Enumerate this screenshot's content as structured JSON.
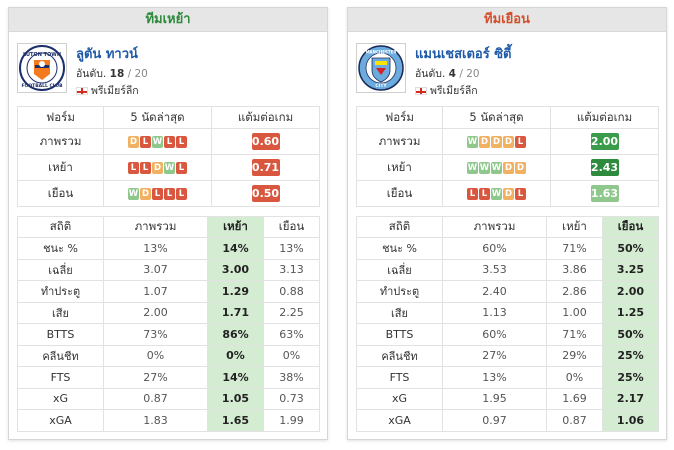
{
  "home": {
    "heading": "ทีมเหย้า",
    "team_name": "ลูตัน ทาวน์",
    "rank_label": "อันดับ.",
    "rank": "18",
    "rank_of": "/ 20",
    "league": "พรีเมียร์ลีก",
    "logo": "luton-town-crest",
    "form_headers": [
      "ฟอร์ม",
      "5 นัดล่าสุด",
      "แต้มต่อเกม"
    ],
    "form_rows": [
      {
        "label": "ภาพรวม",
        "results": [
          "D",
          "L",
          "W",
          "L",
          "L"
        ],
        "ppg": "0.60",
        "ppg_color": "#d9573f"
      },
      {
        "label": "เหย้า",
        "results": [
          "L",
          "L",
          "D",
          "W",
          "L"
        ],
        "ppg": "0.71",
        "ppg_color": "#d9573f"
      },
      {
        "label": "เยือน",
        "results": [
          "W",
          "D",
          "L",
          "L",
          "L"
        ],
        "ppg": "0.50",
        "ppg_color": "#d9573f"
      }
    ],
    "stats_headers": [
      "สถิติ",
      "ภาพรวม",
      "เหย้า",
      "เยือน"
    ],
    "stats_rows": [
      {
        "label": "ชนะ %",
        "values": [
          "13%",
          "14%",
          "13%"
        ]
      },
      {
        "label": "เฉลี่ย",
        "values": [
          "3.07",
          "3.00",
          "3.13"
        ]
      },
      {
        "label": "ทำประตู",
        "values": [
          "1.07",
          "1.29",
          "0.88"
        ]
      },
      {
        "label": "เสีย",
        "values": [
          "2.00",
          "1.71",
          "2.25"
        ]
      },
      {
        "label": "BTTS",
        "values": [
          "73%",
          "86%",
          "63%"
        ]
      },
      {
        "label": "คลีนชีท",
        "values": [
          "0%",
          "0%",
          "0%"
        ]
      },
      {
        "label": "FTS",
        "values": [
          "27%",
          "14%",
          "38%"
        ]
      },
      {
        "label": "xG",
        "values": [
          "0.87",
          "1.05",
          "0.73"
        ]
      },
      {
        "label": "xGA",
        "values": [
          "1.83",
          "1.65",
          "1.99"
        ]
      }
    ]
  },
  "away": {
    "heading": "ทีมเยือน",
    "team_name": "แมนเชสเตอร์ ซิตี้",
    "rank_label": "อันดับ.",
    "rank": "4",
    "rank_of": "/ 20",
    "league": "พรีเมียร์ลีก",
    "logo": "manchester-city-crest",
    "form_headers": [
      "ฟอร์ม",
      "5 นัดล่าสุด",
      "แต้มต่อเกม"
    ],
    "form_rows": [
      {
        "label": "ภาพรวม",
        "results": [
          "W",
          "D",
          "D",
          "D",
          "L"
        ],
        "ppg": "2.00",
        "ppg_color": "#3a9b4a"
      },
      {
        "label": "เหย้า",
        "results": [
          "W",
          "W",
          "W",
          "D",
          "D"
        ],
        "ppg": "2.43",
        "ppg_color": "#2e8b3e"
      },
      {
        "label": "เยือน",
        "results": [
          "L",
          "L",
          "W",
          "D",
          "L"
        ],
        "ppg": "1.63",
        "ppg_color": "#8fc78d"
      }
    ],
    "stats_headers": [
      "สถิติ",
      "ภาพรวม",
      "เหย้า",
      "เยือน"
    ],
    "stats_rows": [
      {
        "label": "ชนะ %",
        "values": [
          "60%",
          "71%",
          "50%"
        ]
      },
      {
        "label": "เฉลี่ย",
        "values": [
          "3.53",
          "3.86",
          "3.25"
        ]
      },
      {
        "label": "ทำประตู",
        "values": [
          "2.40",
          "2.86",
          "2.00"
        ]
      },
      {
        "label": "เสีย",
        "values": [
          "1.13",
          "1.00",
          "1.25"
        ]
      },
      {
        "label": "BTTS",
        "values": [
          "60%",
          "71%",
          "50%"
        ]
      },
      {
        "label": "คลีนชีท",
        "values": [
          "27%",
          "29%",
          "25%"
        ]
      },
      {
        "label": "FTS",
        "values": [
          "13%",
          "0%",
          "25%"
        ]
      },
      {
        "label": "xG",
        "values": [
          "1.95",
          "1.69",
          "2.17"
        ]
      },
      {
        "label": "xGA",
        "values": [
          "0.97",
          "0.87",
          "1.06"
        ]
      }
    ]
  }
}
